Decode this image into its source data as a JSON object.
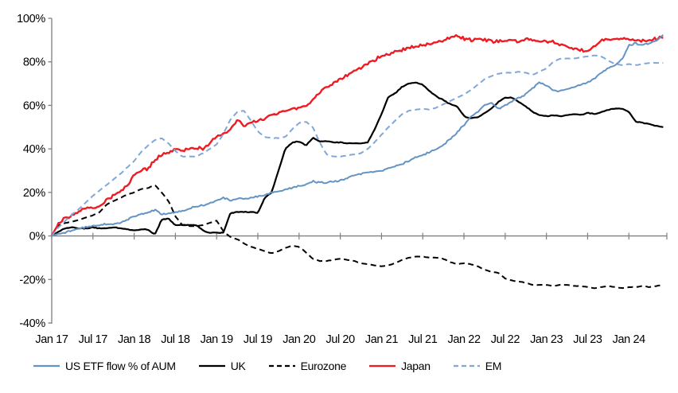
{
  "chart_data": {
    "type": "line",
    "title": "",
    "x_start_label": "Jan 17",
    "x_tick_labels": [
      "Jan 17",
      "Jul 17",
      "Jan 18",
      "Jul 18",
      "Jan 19",
      "Jul 19",
      "Jan 20",
      "Jul 20",
      "Jan 21",
      "Jul 21",
      "Jan 22",
      "Jul 22",
      "Jan 23",
      "Jul 23",
      "Jan 24"
    ],
    "x_months_per_tick": 6,
    "y_ticks": [
      100,
      80,
      60,
      40,
      20,
      0,
      -20,
      -40
    ],
    "y_tick_labels": [
      "100%",
      "80%",
      "60%",
      "40%",
      "20%",
      "0%",
      "-20%",
      "-40%"
    ],
    "ylim": [
      -40,
      100
    ],
    "grid": false,
    "legend_position": "bottom",
    "axis_color": "#808080",
    "text_color": "#000000",
    "x_unit": "monthly values from Jan 2017, in percent of AUM",
    "series": [
      {
        "name": "US ETF flow % of AUM",
        "color": "#6494C4",
        "style": "solid",
        "values": [
          0,
          1,
          1.5,
          2.5,
          3.5,
          4,
          4.5,
          5,
          5.3,
          5.5,
          6,
          7.5,
          9,
          10,
          10.5,
          12,
          10,
          10.5,
          11,
          11.5,
          12.5,
          13.5,
          14,
          15,
          16,
          17.5,
          16.5,
          17,
          17,
          17.5,
          18,
          19,
          20,
          20.5,
          21.5,
          22,
          23,
          23.5,
          25,
          24.5,
          24.5,
          25,
          25.5,
          26.5,
          28,
          28.5,
          29,
          29.5,
          30,
          31,
          32,
          33,
          34.5,
          36,
          37,
          38.5,
          40,
          42,
          44.5,
          47.5,
          51,
          55,
          57,
          60,
          61,
          58.5,
          60,
          62,
          63.5,
          65,
          68,
          70.5,
          69,
          67,
          66.5,
          67.5,
          68.5,
          69.5,
          70.5,
          72.5,
          75,
          77,
          78.5,
          81,
          87.5,
          88.5,
          87.5,
          88.5,
          89.5,
          92.5
        ]
      },
      {
        "name": "UK",
        "color": "#000000",
        "style": "solid",
        "values": [
          0,
          2,
          3.5,
          4,
          3.5,
          3.5,
          4,
          3.5,
          3.5,
          4,
          3.5,
          3,
          2.5,
          3,
          3,
          0.5,
          7.5,
          8,
          5,
          5,
          5,
          5,
          2.5,
          1.5,
          1.5,
          1.5,
          10.5,
          11,
          11,
          11,
          10.5,
          17.5,
          20,
          30,
          40,
          43,
          43.5,
          41.5,
          45,
          43.5,
          43.5,
          43,
          43,
          42.5,
          42.5,
          42.5,
          43,
          49,
          56,
          64,
          65.5,
          68.5,
          70,
          70.5,
          69.5,
          66.5,
          64,
          62.5,
          60.5,
          59.5,
          55,
          54,
          54.5,
          56.5,
          58.5,
          61.5,
          63.5,
          63.5,
          61.5,
          59.5,
          57,
          55.5,
          55,
          55.5,
          55,
          55.5,
          56,
          55.5,
          56.5,
          56,
          57,
          58,
          58.5,
          58.5,
          57,
          52.5,
          52,
          51.5,
          50.5,
          50
        ]
      },
      {
        "name": "Eurozone",
        "color": "#000000",
        "style": "dashed",
        "values": [
          0,
          5,
          6,
          6.5,
          7.5,
          8.5,
          9.5,
          11,
          14.5,
          16,
          17.5,
          19,
          20,
          21.5,
          22,
          23.5,
          20,
          16,
          9,
          5,
          4.5,
          4.5,
          5,
          6,
          7,
          2,
          -0.5,
          -1.5,
          -3.5,
          -5,
          -6,
          -7,
          -8,
          -7,
          -5.5,
          -4.5,
          -5,
          -7.5,
          -10.5,
          -11.5,
          -11.5,
          -11,
          -10.5,
          -11,
          -11.5,
          -12.5,
          -13,
          -13.5,
          -14,
          -13.5,
          -12.5,
          -11,
          -10,
          -9.5,
          -9.5,
          -10,
          -10,
          -10.5,
          -12,
          -13,
          -12.5,
          -13,
          -14,
          -15.5,
          -16.5,
          -17,
          -19.5,
          -20.5,
          -21,
          -21.5,
          -22.5,
          -22.5,
          -22.5,
          -23,
          -22.5,
          -22.5,
          -23,
          -23,
          -23.5,
          -24,
          -23.5,
          -23,
          -23.5,
          -24,
          -23.5,
          -23.5,
          -23,
          -23.5,
          -23,
          -22.5
        ]
      },
      {
        "name": "Japan",
        "color": "#ED1C24",
        "style": "solid",
        "values": [
          0,
          6,
          8,
          9.5,
          11.5,
          13,
          13,
          13.5,
          16.5,
          18.5,
          20.5,
          23,
          28,
          30,
          31,
          35,
          37,
          38.5,
          40,
          39.5,
          40,
          40.5,
          40,
          42.5,
          45.5,
          47,
          49,
          53.5,
          50.5,
          52,
          53,
          54,
          55.5,
          56.5,
          57.5,
          58.5,
          59,
          60,
          62.5,
          66,
          68.5,
          70,
          72,
          74,
          75.5,
          77.5,
          79.5,
          81,
          82.5,
          83.5,
          84.5,
          85.5,
          86.5,
          87,
          87.5,
          88.5,
          89,
          90,
          91,
          92,
          90.5,
          90,
          90.5,
          90,
          89.5,
          89.5,
          89.5,
          90,
          89.5,
          90.5,
          90,
          89.5,
          89.5,
          89,
          88,
          87,
          86,
          85.5,
          85,
          87,
          89.5,
          90,
          90,
          90.5,
          90.5,
          90,
          89.5,
          90,
          90.5,
          91.5
        ]
      },
      {
        "name": "EM",
        "color": "#7FA8D8",
        "style": "dashed",
        "values": [
          0,
          4,
          7,
          10,
          12.5,
          15.5,
          18.5,
          21,
          23.5,
          26,
          28.5,
          31.5,
          34.5,
          38.5,
          41.5,
          44,
          45,
          42.5,
          39,
          36.5,
          36.5,
          36.5,
          38,
          40,
          42,
          47,
          53.5,
          57,
          57.5,
          53,
          48,
          45.5,
          45,
          45,
          45.5,
          49,
          52,
          52.5,
          50,
          43,
          37.5,
          36.5,
          36.5,
          37,
          37.5,
          38,
          40,
          43,
          46.5,
          50,
          53,
          56,
          57.5,
          58,
          58.5,
          58,
          59,
          60.5,
          62,
          63.5,
          65,
          67,
          69.5,
          72,
          73.5,
          74.5,
          75,
          75,
          75.5,
          75,
          74,
          75.5,
          77,
          80,
          81.5,
          81.5,
          81.5,
          82,
          82.5,
          83,
          82.5,
          80.5,
          79,
          78.5,
          79,
          78.5,
          79,
          79.5,
          79.5,
          79.5
        ]
      }
    ]
  }
}
